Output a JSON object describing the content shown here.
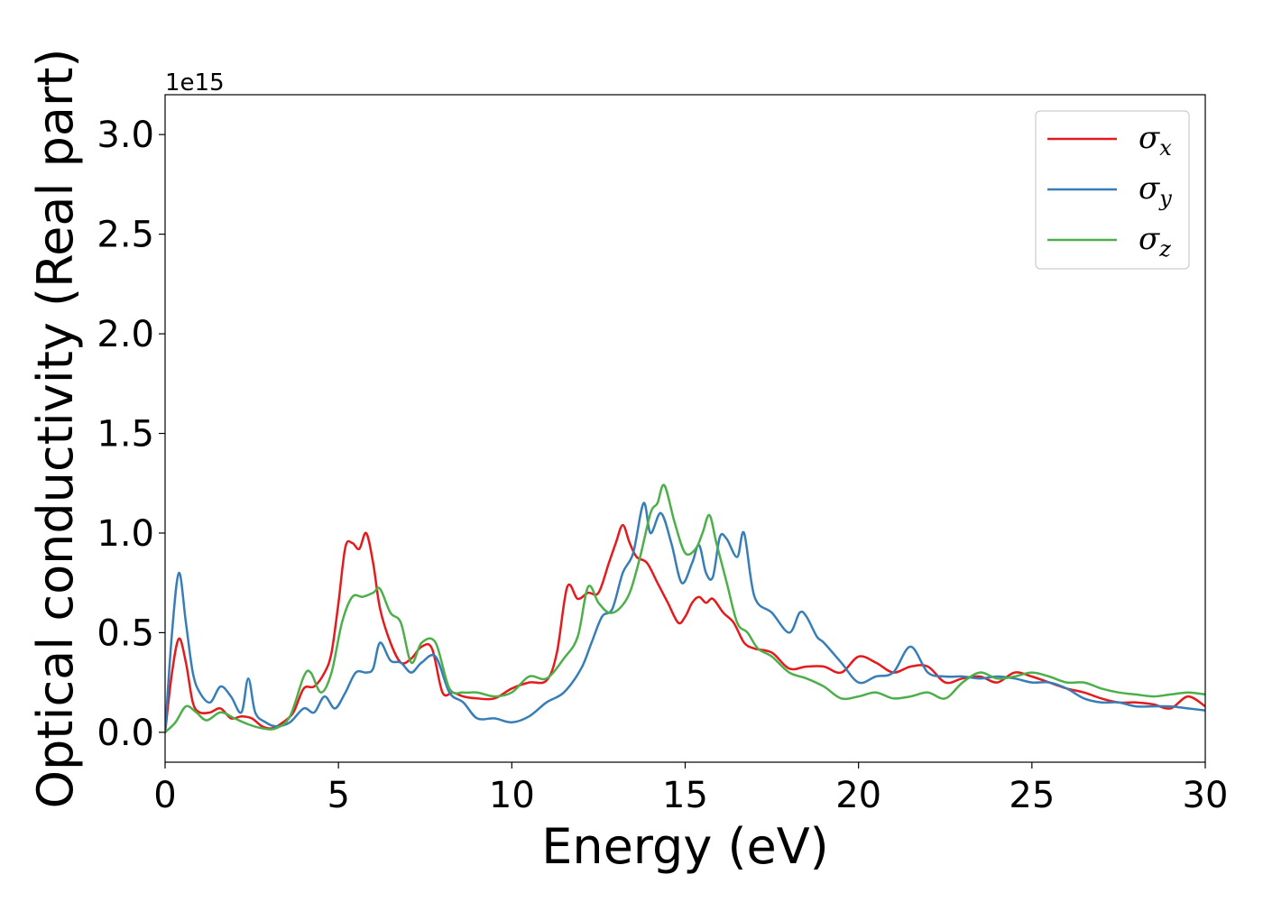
{
  "chart_data": {
    "type": "line",
    "title": "",
    "xlabel": "Energy (eV)",
    "ylabel": "Optical conductivity (Real part)",
    "y_offset_text": "1e15",
    "xlim": [
      0,
      30
    ],
    "ylim": [
      -0.15,
      3.2
    ],
    "x_ticks": [
      0,
      5,
      10,
      15,
      20,
      25,
      30
    ],
    "x_tick_labels": [
      "0",
      "5",
      "10",
      "15",
      "20",
      "25",
      "30"
    ],
    "y_ticks": [
      0.0,
      0.5,
      1.0,
      1.5,
      2.0,
      2.5,
      3.0
    ],
    "y_tick_labels": [
      "0.0",
      "0.5",
      "1.0",
      "1.5",
      "2.0",
      "2.5",
      "3.0"
    ],
    "grid": false,
    "legend_position": "top-right",
    "series": [
      {
        "name": "σx",
        "symbol": "σ",
        "subscript": "x",
        "color": "#e41a1c",
        "x": [
          0,
          0.2,
          0.4,
          0.6,
          0.8,
          1.0,
          1.3,
          1.6,
          1.9,
          2.2,
          2.5,
          2.8,
          3.1,
          3.4,
          3.7,
          4.0,
          4.3,
          4.6,
          4.8,
          5.0,
          5.2,
          5.4,
          5.6,
          5.8,
          6.0,
          6.2,
          6.5,
          6.8,
          7.1,
          7.4,
          7.7,
          8.0,
          8.3,
          8.6,
          9.0,
          9.5,
          10.0,
          10.5,
          11.0,
          11.3,
          11.6,
          11.9,
          12.2,
          12.5,
          12.8,
          13.0,
          13.2,
          13.4,
          13.6,
          13.9,
          14.2,
          14.5,
          14.8,
          15.0,
          15.2,
          15.4,
          15.6,
          15.8,
          16.1,
          16.4,
          16.7,
          17.0,
          17.5,
          18.0,
          18.5,
          19.0,
          19.5,
          20.0,
          20.5,
          21.0,
          21.5,
          22.0,
          22.5,
          23.0,
          23.5,
          24.0,
          24.5,
          25.0,
          25.5,
          26.0,
          26.5,
          27.0,
          27.5,
          28.0,
          28.5,
          29.0,
          29.5,
          30.0
        ],
        "y": [
          0.0,
          0.3,
          0.47,
          0.35,
          0.15,
          0.1,
          0.1,
          0.12,
          0.07,
          0.08,
          0.07,
          0.03,
          0.02,
          0.05,
          0.1,
          0.22,
          0.23,
          0.3,
          0.4,
          0.65,
          0.93,
          0.95,
          0.92,
          1.0,
          0.85,
          0.62,
          0.45,
          0.35,
          0.37,
          0.43,
          0.42,
          0.2,
          0.2,
          0.18,
          0.17,
          0.17,
          0.22,
          0.25,
          0.26,
          0.4,
          0.73,
          0.67,
          0.7,
          0.7,
          0.85,
          0.95,
          1.04,
          0.95,
          0.88,
          0.85,
          0.75,
          0.65,
          0.55,
          0.58,
          0.65,
          0.68,
          0.65,
          0.67,
          0.6,
          0.55,
          0.45,
          0.42,
          0.4,
          0.32,
          0.33,
          0.33,
          0.3,
          0.38,
          0.35,
          0.3,
          0.33,
          0.33,
          0.25,
          0.27,
          0.28,
          0.25,
          0.3,
          0.28,
          0.25,
          0.22,
          0.2,
          0.17,
          0.15,
          0.15,
          0.14,
          0.12,
          0.18,
          0.13
        ]
      },
      {
        "name": "σy",
        "symbol": "σ",
        "subscript": "y",
        "color": "#377eb8",
        "x": [
          0,
          0.2,
          0.4,
          0.6,
          0.8,
          1.0,
          1.3,
          1.6,
          1.9,
          2.2,
          2.4,
          2.6,
          2.9,
          3.2,
          3.6,
          4.0,
          4.3,
          4.6,
          4.9,
          5.2,
          5.5,
          5.8,
          6.0,
          6.2,
          6.5,
          6.8,
          7.1,
          7.4,
          7.8,
          8.2,
          8.6,
          9.0,
          9.5,
          10.0,
          10.5,
          11.0,
          11.5,
          12.0,
          12.3,
          12.6,
          12.9,
          13.2,
          13.5,
          13.8,
          14.0,
          14.3,
          14.6,
          14.9,
          15.2,
          15.4,
          15.6,
          15.8,
          16.0,
          16.2,
          16.5,
          16.7,
          17.0,
          17.5,
          18.0,
          18.3,
          18.5,
          18.8,
          19.0,
          19.5,
          20.0,
          20.5,
          21.0,
          21.5,
          22.0,
          22.5,
          23.0,
          23.5,
          24.0,
          24.5,
          25.0,
          25.5,
          26.0,
          26.5,
          27.0,
          27.5,
          28.0,
          28.5,
          29.0,
          29.5,
          30.0
        ],
        "y": [
          0.0,
          0.5,
          0.8,
          0.55,
          0.3,
          0.2,
          0.15,
          0.23,
          0.18,
          0.1,
          0.27,
          0.1,
          0.05,
          0.03,
          0.05,
          0.12,
          0.1,
          0.18,
          0.12,
          0.2,
          0.3,
          0.3,
          0.32,
          0.45,
          0.36,
          0.35,
          0.3,
          0.35,
          0.38,
          0.2,
          0.15,
          0.07,
          0.07,
          0.05,
          0.08,
          0.15,
          0.2,
          0.32,
          0.45,
          0.58,
          0.62,
          0.8,
          0.9,
          1.15,
          1.0,
          1.1,
          0.95,
          0.75,
          0.85,
          0.94,
          0.8,
          0.78,
          0.98,
          0.97,
          0.88,
          1.0,
          0.68,
          0.6,
          0.5,
          0.6,
          0.58,
          0.48,
          0.45,
          0.35,
          0.25,
          0.28,
          0.3,
          0.43,
          0.3,
          0.28,
          0.28,
          0.27,
          0.28,
          0.27,
          0.25,
          0.25,
          0.22,
          0.17,
          0.15,
          0.15,
          0.13,
          0.13,
          0.13,
          0.12,
          0.11
        ]
      },
      {
        "name": "σz",
        "symbol": "σ",
        "subscript": "z",
        "color": "#4daf4a",
        "x": [
          0,
          0.3,
          0.6,
          0.9,
          1.2,
          1.6,
          2.0,
          2.4,
          2.8,
          3.2,
          3.6,
          4.0,
          4.2,
          4.5,
          4.8,
          5.1,
          5.4,
          5.7,
          6.0,
          6.2,
          6.5,
          6.8,
          7.1,
          7.4,
          7.8,
          8.2,
          8.6,
          9.0,
          9.5,
          10.0,
          10.5,
          11.0,
          11.5,
          11.9,
          12.2,
          12.5,
          12.8,
          13.1,
          13.4,
          13.7,
          14.0,
          14.2,
          14.4,
          14.7,
          15.0,
          15.3,
          15.5,
          15.7,
          15.9,
          16.2,
          16.5,
          16.8,
          17.1,
          17.5,
          18.0,
          18.5,
          19.0,
          19.5,
          20.0,
          20.5,
          21.0,
          21.5,
          22.0,
          22.5,
          23.0,
          23.5,
          24.0,
          24.5,
          25.0,
          25.5,
          26.0,
          26.5,
          27.0,
          27.5,
          28.0,
          28.5,
          29.0,
          29.5,
          30.0
        ],
        "y": [
          0.0,
          0.05,
          0.13,
          0.1,
          0.06,
          0.1,
          0.07,
          0.04,
          0.02,
          0.02,
          0.08,
          0.28,
          0.3,
          0.2,
          0.3,
          0.55,
          0.68,
          0.68,
          0.7,
          0.72,
          0.6,
          0.55,
          0.35,
          0.45,
          0.45,
          0.22,
          0.2,
          0.2,
          0.18,
          0.2,
          0.28,
          0.27,
          0.37,
          0.48,
          0.73,
          0.65,
          0.6,
          0.62,
          0.7,
          0.88,
          1.1,
          1.15,
          1.24,
          1.05,
          0.9,
          0.92,
          1.0,
          1.09,
          0.95,
          0.75,
          0.55,
          0.5,
          0.42,
          0.38,
          0.3,
          0.27,
          0.23,
          0.17,
          0.18,
          0.2,
          0.17,
          0.18,
          0.2,
          0.17,
          0.25,
          0.3,
          0.27,
          0.28,
          0.3,
          0.28,
          0.25,
          0.25,
          0.22,
          0.2,
          0.19,
          0.18,
          0.19,
          0.2,
          0.19
        ]
      }
    ]
  }
}
